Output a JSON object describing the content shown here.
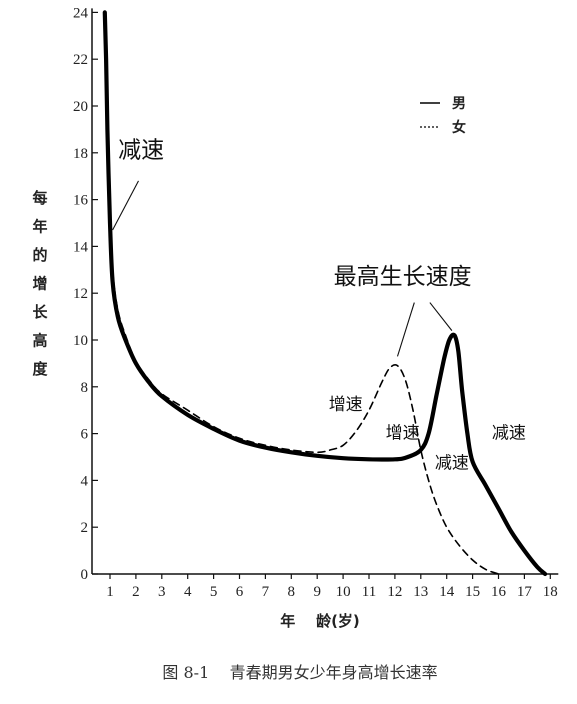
{
  "chart_data": {
    "type": "line",
    "title": "",
    "caption": "图 8-1    青春期男女少年身高增长速率",
    "ylabel": [
      "每",
      "年",
      "的",
      "增",
      "长",
      "高",
      "度"
    ],
    "xlabel": "年    龄(岁)",
    "ylim": [
      0,
      24
    ],
    "xlim": [
      0.5,
      18.3
    ],
    "yticks": [
      "0",
      "2",
      "4",
      "6",
      "8",
      "10",
      "12",
      "14",
      "16",
      "18",
      "20",
      "22",
      "24"
    ],
    "xticks": [
      "1",
      "2",
      "3",
      "4",
      "5",
      "6",
      "7",
      "8",
      "9",
      "10",
      "11",
      "12",
      "13",
      "14",
      "15",
      "16",
      "17",
      "18"
    ],
    "grid": false,
    "legend_position": "top-right",
    "series": [
      {
        "name": "男",
        "style": "solid",
        "color": "#000000",
        "x": [
          0.8,
          0.85,
          0.9,
          1.0,
          1.1,
          1.3,
          1.6,
          2.0,
          2.5,
          3.0,
          4.0,
          5.0,
          6.0,
          7.0,
          8.0,
          9.0,
          10.0,
          11.0,
          12.0,
          12.5,
          13.0,
          13.3,
          13.6,
          13.9,
          14.1,
          14.3,
          14.45,
          14.6,
          14.8,
          15.0,
          15.5,
          16.0,
          16.5,
          17.0,
          17.5,
          17.8
        ],
        "y": [
          24,
          22,
          19,
          15,
          12.5,
          11,
          10,
          9,
          8.2,
          7.6,
          6.8,
          6.2,
          5.7,
          5.4,
          5.2,
          5.05,
          4.95,
          4.9,
          4.9,
          5.0,
          5.3,
          6.0,
          7.6,
          9.2,
          10.0,
          10.2,
          9.5,
          7.8,
          6.0,
          4.8,
          3.8,
          2.8,
          1.8,
          1.0,
          0.3,
          0
        ]
      },
      {
        "name": "女",
        "style": "dashed",
        "color": "#000000",
        "x": [
          0.8,
          0.85,
          0.9,
          1.0,
          1.1,
          1.3,
          1.6,
          2.0,
          2.5,
          3.0,
          4.0,
          5.0,
          6.0,
          7.0,
          8.0,
          9.0,
          9.5,
          10.0,
          10.5,
          11.0,
          11.5,
          11.8,
          12.1,
          12.4,
          12.7,
          13.0,
          13.3,
          13.6,
          14.0,
          14.5,
          15.0,
          15.5,
          16.0
        ],
        "y": [
          24,
          22,
          19,
          15.5,
          13,
          11.3,
          10.2,
          9.1,
          8.3,
          7.7,
          7.0,
          6.3,
          5.8,
          5.5,
          5.3,
          5.2,
          5.3,
          5.5,
          6.1,
          7.0,
          8.2,
          8.8,
          8.9,
          8.3,
          7.0,
          5.3,
          4.0,
          3.0,
          2.0,
          1.2,
          0.6,
          0.2,
          0
        ]
      }
    ],
    "annotations": [
      {
        "text": "减速",
        "x": 2.2,
        "y": 17.8,
        "size": "large",
        "arrow_to": [
          1.1,
          14.7
        ],
        "arrow_from": [
          2.1,
          16.8
        ]
      },
      {
        "text": "最高生长速度",
        "x": 12.3,
        "y": 12.4,
        "size": "large"
      },
      {
        "text": "增速",
        "x": 10.1,
        "y": 7.0,
        "size": "small"
      },
      {
        "text": "增速",
        "x": 12.3,
        "y": 5.8,
        "size": "small"
      },
      {
        "text": "减速",
        "x": 14.2,
        "y": 4.5,
        "size": "small"
      },
      {
        "text": "减速",
        "x": 16.4,
        "y": 5.8,
        "size": "small"
      }
    ],
    "peak_pointers": [
      {
        "from": [
          12.75,
          11.6
        ],
        "to": [
          12.1,
          9.3
        ]
      },
      {
        "from": [
          13.35,
          11.6
        ],
        "to": [
          14.2,
          10.4
        ]
      }
    ]
  }
}
